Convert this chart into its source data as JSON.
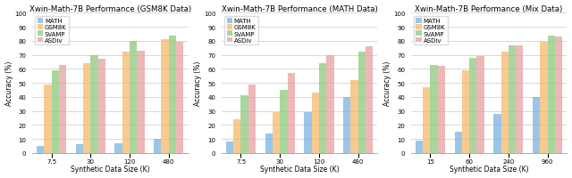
{
  "charts": [
    {
      "title": "Xwin-Math-7B Performance (GSM8K Data)",
      "xlabel": "Synthetic Data Size (K)",
      "ylabel": "Accuracy (%)",
      "x_labels": [
        "7.5",
        "30",
        "120",
        "480"
      ],
      "series": {
        "MATH": [
          5,
          6,
          7,
          10
        ],
        "GSM8K": [
          49,
          64,
          72,
          81
        ],
        "SVAMP": [
          59,
          70,
          80,
          84
        ],
        "ASDiv": [
          63,
          67,
          73,
          79
        ]
      }
    },
    {
      "title": "Xwin-Math-7B Performance (MATH Data)",
      "xlabel": "Synthetic Data Size (K)",
      "ylabel": "Accuracy (%)",
      "x_labels": [
        "7.5",
        "30",
        "120",
        "480"
      ],
      "series": {
        "MATH": [
          8,
          14,
          29,
          40
        ],
        "GSM8K": [
          24,
          29,
          43,
          52
        ],
        "SVAMP": [
          41,
          45,
          64,
          72
        ],
        "ASDiv": [
          49,
          57,
          70,
          76
        ]
      }
    },
    {
      "title": "Xwin-Math-7B Performance (Mix Data)",
      "xlabel": "Synthetic Data Size (K)",
      "ylabel": "Accuracy (%)",
      "x_labels": [
        "15",
        "60",
        "240",
        "960"
      ],
      "series": {
        "MATH": [
          9,
          15,
          28,
          40
        ],
        "GSM8K": [
          47,
          59,
          72,
          79
        ],
        "SVAMP": [
          63,
          68,
          77,
          84
        ],
        "ASDiv": [
          62,
          69,
          77,
          83
        ]
      }
    }
  ],
  "series_names": [
    "MATH",
    "GSM8K",
    "SVAMP",
    "ASDiv"
  ],
  "colors": {
    "MATH": "#7ab4e0",
    "GSM8K": "#f6b96b",
    "SVAMP": "#8ec97d",
    "ASDiv": "#e8a0a0"
  },
  "ylim": [
    0,
    100
  ],
  "yticks": [
    0,
    10,
    20,
    30,
    40,
    50,
    60,
    70,
    80,
    90,
    100
  ],
  "bar_width": 0.19,
  "title_fontsize": 6.2,
  "label_fontsize": 5.5,
  "tick_fontsize": 5.0,
  "legend_fontsize": 5.0,
  "figure_bg": "#ffffff",
  "axes_bg": "#ffffff",
  "grid_color": "#d8d8d8"
}
